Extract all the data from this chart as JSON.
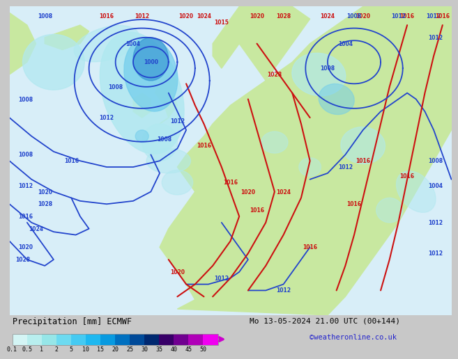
{
  "title_left": "Precipitation [mm] ECMWF",
  "title_right": "Mo 13-05-2024 21.00 UTC (00+144)",
  "credit": "©weatheronline.co.uk",
  "colorbar_labels": [
    "0.1",
    "0.5",
    "1",
    "2",
    "5",
    "10",
    "15",
    "20",
    "25",
    "30",
    "35",
    "40",
    "45",
    "50"
  ],
  "colorbar_colors": [
    "#d4f5f5",
    "#b8eeee",
    "#96e6e8",
    "#6ddaf0",
    "#45caf2",
    "#1eb8f0",
    "#089ae0",
    "#0070c0",
    "#004a99",
    "#002870",
    "#380068",
    "#700090",
    "#b000b8",
    "#f000f0"
  ],
  "ocean_color": "#d8eef8",
  "land_color": "#c8e8a0",
  "precip_light_color": "#b0e8f0",
  "precip_mid_color": "#70ccec",
  "precip_dark_color": "#3090d0",
  "blue_line_color": "#2244cc",
  "red_line_color": "#cc1111",
  "text_color": "#000000",
  "credit_color": "#2222cc",
  "bg_color": "#c8c8c8",
  "bottom_bg": "#ffffff",
  "fontsize_label": 5.5,
  "lw_blue": 1.3,
  "lw_red": 1.5
}
